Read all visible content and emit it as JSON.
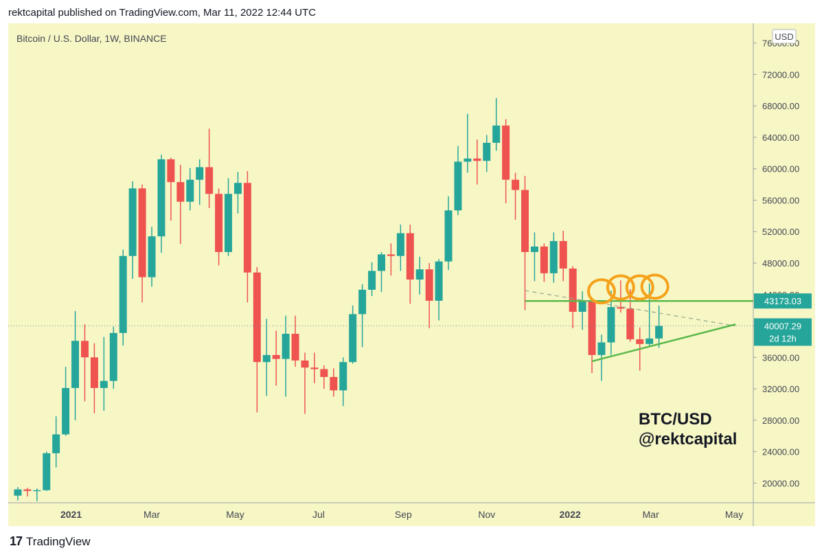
{
  "header": {
    "published": "rektcapital published on TradingView.com, Mar 11, 2022 12:44 UTC"
  },
  "footer": {
    "logo_icon": "tradingview-logo-icon",
    "logo_glyph": "17",
    "brand": "TradingView"
  },
  "colors": {
    "background": "#f7f7c6",
    "up": "#26a69a",
    "down": "#ef5350",
    "trendline": "#5ab84a",
    "highlight_circle": "#f5a11a",
    "price_label": "#26a69a"
  },
  "chart_data": {
    "type": "candlestick",
    "symbol_label": "Bitcoin / U.S. Dollar, 1W, BINANCE",
    "currency": "USD",
    "watermark": [
      "BTC/USD",
      "@rektcapital"
    ],
    "ylim": [
      17500,
      78500
    ],
    "y_ticks": [
      "20000.00",
      "24000.00",
      "28000.00",
      "32000.00",
      "36000.00",
      "40000.00",
      "44000.00",
      "48000.00",
      "52000.00",
      "56000.00",
      "60000.00",
      "64000.00",
      "68000.00",
      "72000.00",
      "76000.00"
    ],
    "x_ticks": [
      {
        "label": "2021",
        "date": "2021-01-01"
      },
      {
        "label": "Mar",
        "date": "2021-03-01"
      },
      {
        "label": "May",
        "date": "2021-05-01"
      },
      {
        "label": "Jul",
        "date": "2021-07-01"
      },
      {
        "label": "Sep",
        "date": "2021-09-01"
      },
      {
        "label": "Nov",
        "date": "2021-11-01"
      },
      {
        "label": "2022",
        "date": "2022-01-01"
      },
      {
        "label": "Mar",
        "date": "2022-03-01"
      },
      {
        "label": "May",
        "date": "2022-05-01"
      }
    ],
    "candles": [
      {
        "date": "2020-11-23",
        "o": 18400,
        "h": 19500,
        "l": 17800,
        "c": 19200
      },
      {
        "date": "2020-11-30",
        "o": 19200,
        "h": 19400,
        "l": 18300,
        "c": 19000
      },
      {
        "date": "2020-12-07",
        "o": 19000,
        "h": 19300,
        "l": 17700,
        "c": 19100
      },
      {
        "date": "2020-12-14",
        "o": 19100,
        "h": 24000,
        "l": 19000,
        "c": 23800
      },
      {
        "date": "2020-12-21",
        "o": 23800,
        "h": 28500,
        "l": 22000,
        "c": 26200
      },
      {
        "date": "2020-12-28",
        "o": 26200,
        "h": 34800,
        "l": 26000,
        "c": 32100
      },
      {
        "date": "2021-01-04",
        "o": 32100,
        "h": 41900,
        "l": 28000,
        "c": 38100
      },
      {
        "date": "2021-01-11",
        "o": 38100,
        "h": 40200,
        "l": 30400,
        "c": 36000
      },
      {
        "date": "2021-01-18",
        "o": 36000,
        "h": 37800,
        "l": 28900,
        "c": 32100
      },
      {
        "date": "2021-01-25",
        "o": 32100,
        "h": 38600,
        "l": 29200,
        "c": 33000
      },
      {
        "date": "2021-02-01",
        "o": 33000,
        "h": 39900,
        "l": 32000,
        "c": 39100
      },
      {
        "date": "2021-02-08",
        "o": 39100,
        "h": 49700,
        "l": 37500,
        "c": 48900
      },
      {
        "date": "2021-02-15",
        "o": 48900,
        "h": 58400,
        "l": 46000,
        "c": 57500
      },
      {
        "date": "2021-02-22",
        "o": 57500,
        "h": 58000,
        "l": 43000,
        "c": 46200
      },
      {
        "date": "2021-03-01",
        "o": 46200,
        "h": 52600,
        "l": 45000,
        "c": 51400
      },
      {
        "date": "2021-03-08",
        "o": 51400,
        "h": 61800,
        "l": 49300,
        "c": 61200
      },
      {
        "date": "2021-03-15",
        "o": 61200,
        "h": 61400,
        "l": 53400,
        "c": 58300
      },
      {
        "date": "2021-03-22",
        "o": 58300,
        "h": 60500,
        "l": 50400,
        "c": 55800
      },
      {
        "date": "2021-03-29",
        "o": 55800,
        "h": 60100,
        "l": 54700,
        "c": 58600
      },
      {
        "date": "2021-04-05",
        "o": 58600,
        "h": 61200,
        "l": 55400,
        "c": 60200
      },
      {
        "date": "2021-04-12",
        "o": 60200,
        "h": 65100,
        "l": 55000,
        "c": 56800
      },
      {
        "date": "2021-04-19",
        "o": 56800,
        "h": 57500,
        "l": 47700,
        "c": 49400
      },
      {
        "date": "2021-04-26",
        "o": 49400,
        "h": 58800,
        "l": 48900,
        "c": 56800
      },
      {
        "date": "2021-05-03",
        "o": 56800,
        "h": 59600,
        "l": 54300,
        "c": 58200
      },
      {
        "date": "2021-05-10",
        "o": 58200,
        "h": 59700,
        "l": 43000,
        "c": 46800
      },
      {
        "date": "2021-05-17",
        "o": 46800,
        "h": 47500,
        "l": 29000,
        "c": 35400
      },
      {
        "date": "2021-05-24",
        "o": 35400,
        "h": 40900,
        "l": 31100,
        "c": 36300
      },
      {
        "date": "2021-05-31",
        "o": 36300,
        "h": 39400,
        "l": 32400,
        "c": 35800
      },
      {
        "date": "2021-06-07",
        "o": 35800,
        "h": 41300,
        "l": 31000,
        "c": 39000
      },
      {
        "date": "2021-06-14",
        "o": 39000,
        "h": 41300,
        "l": 34800,
        "c": 35600
      },
      {
        "date": "2021-06-21",
        "o": 35600,
        "h": 36600,
        "l": 28800,
        "c": 34700
      },
      {
        "date": "2021-06-28",
        "o": 34700,
        "h": 36600,
        "l": 32700,
        "c": 34500
      },
      {
        "date": "2021-07-05",
        "o": 34500,
        "h": 35000,
        "l": 32000,
        "c": 33500
      },
      {
        "date": "2021-07-12",
        "o": 33500,
        "h": 34600,
        "l": 31000,
        "c": 31800
      },
      {
        "date": "2021-07-19",
        "o": 31800,
        "h": 36000,
        "l": 29800,
        "c": 35400
      },
      {
        "date": "2021-07-26",
        "o": 35400,
        "h": 42600,
        "l": 35200,
        "c": 41500
      },
      {
        "date": "2021-08-02",
        "o": 41500,
        "h": 45300,
        "l": 37300,
        "c": 44600
      },
      {
        "date": "2021-08-09",
        "o": 44600,
        "h": 48100,
        "l": 43800,
        "c": 47000
      },
      {
        "date": "2021-08-16",
        "o": 47000,
        "h": 49400,
        "l": 44300,
        "c": 49100
      },
      {
        "date": "2021-08-23",
        "o": 49100,
        "h": 50500,
        "l": 46400,
        "c": 48900
      },
      {
        "date": "2021-08-30",
        "o": 48900,
        "h": 52900,
        "l": 47000,
        "c": 51800
      },
      {
        "date": "2021-09-06",
        "o": 51800,
        "h": 52900,
        "l": 42800,
        "c": 45900
      },
      {
        "date": "2021-09-13",
        "o": 45900,
        "h": 48800,
        "l": 44000,
        "c": 47200
      },
      {
        "date": "2021-09-20",
        "o": 47200,
        "h": 48000,
        "l": 39700,
        "c": 43200
      },
      {
        "date": "2021-09-27",
        "o": 43200,
        "h": 48500,
        "l": 40700,
        "c": 48200
      },
      {
        "date": "2021-10-04",
        "o": 48200,
        "h": 56500,
        "l": 47100,
        "c": 54700
      },
      {
        "date": "2021-10-11",
        "o": 54700,
        "h": 62900,
        "l": 54100,
        "c": 60900
      },
      {
        "date": "2021-10-18",
        "o": 60900,
        "h": 67000,
        "l": 59500,
        "c": 61300
      },
      {
        "date": "2021-10-25",
        "o": 61300,
        "h": 63700,
        "l": 58000,
        "c": 61000
      },
      {
        "date": "2021-11-01",
        "o": 61000,
        "h": 64300,
        "l": 59600,
        "c": 63300
      },
      {
        "date": "2021-11-08",
        "o": 63300,
        "h": 69000,
        "l": 62300,
        "c": 65500
      },
      {
        "date": "2021-11-15",
        "o": 65500,
        "h": 66300,
        "l": 55600,
        "c": 58600
      },
      {
        "date": "2021-11-22",
        "o": 58600,
        "h": 59500,
        "l": 53500,
        "c": 57300
      },
      {
        "date": "2021-11-29",
        "o": 57300,
        "h": 59100,
        "l": 42000,
        "c": 49400
      },
      {
        "date": "2021-12-06",
        "o": 49400,
        "h": 51900,
        "l": 45700,
        "c": 50100
      },
      {
        "date": "2021-12-13",
        "o": 50100,
        "h": 50500,
        "l": 45600,
        "c": 46700
      },
      {
        "date": "2021-12-20",
        "o": 46700,
        "h": 51900,
        "l": 45500,
        "c": 50800
      },
      {
        "date": "2021-12-27",
        "o": 50800,
        "h": 52100,
        "l": 45700,
        "c": 47300
      },
      {
        "date": "2022-01-03",
        "o": 47300,
        "h": 47600,
        "l": 39700,
        "c": 41800
      },
      {
        "date": "2022-01-10",
        "o": 41800,
        "h": 44400,
        "l": 39500,
        "c": 43100
      },
      {
        "date": "2022-01-17",
        "o": 43100,
        "h": 43500,
        "l": 34000,
        "c": 36300
      },
      {
        "date": "2022-01-24",
        "o": 36300,
        "h": 38900,
        "l": 33000,
        "c": 37900
      },
      {
        "date": "2022-01-31",
        "o": 37900,
        "h": 44500,
        "l": 36300,
        "c": 42400
      },
      {
        "date": "2022-02-07",
        "o": 42400,
        "h": 45800,
        "l": 41700,
        "c": 42200
      },
      {
        "date": "2022-02-14",
        "o": 42200,
        "h": 44700,
        "l": 38000,
        "c": 38300
      },
      {
        "date": "2022-02-21",
        "o": 38300,
        "h": 39800,
        "l": 34300,
        "c": 37700
      },
      {
        "date": "2022-02-28",
        "o": 37700,
        "h": 45400,
        "l": 37500,
        "c": 38400
      },
      {
        "date": "2022-03-07",
        "o": 38400,
        "h": 42600,
        "l": 37200,
        "c": 40007
      }
    ],
    "horizontal_line": {
      "value": 43173.03,
      "label": "43173.03",
      "from_date": "2021-11-29"
    },
    "current_price": {
      "value": 40007.29,
      "label": "40007.29",
      "countdown": "2d 12h"
    },
    "rising_trendline": {
      "from": {
        "date": "2022-01-17",
        "value": 35500
      },
      "to": {
        "date": "2022-05-02",
        "value": 40200
      }
    },
    "dashed_trendline": {
      "from": {
        "date": "2021-11-29",
        "value": 44500
      },
      "to": {
        "date": "2022-05-02",
        "value": 40000
      }
    },
    "highlight_circles": [
      {
        "date": "2022-01-24",
        "value": 44400
      },
      {
        "date": "2022-02-07",
        "value": 44900
      },
      {
        "date": "2022-02-21",
        "value": 44900
      },
      {
        "date": "2022-03-04",
        "value": 45000
      }
    ]
  }
}
